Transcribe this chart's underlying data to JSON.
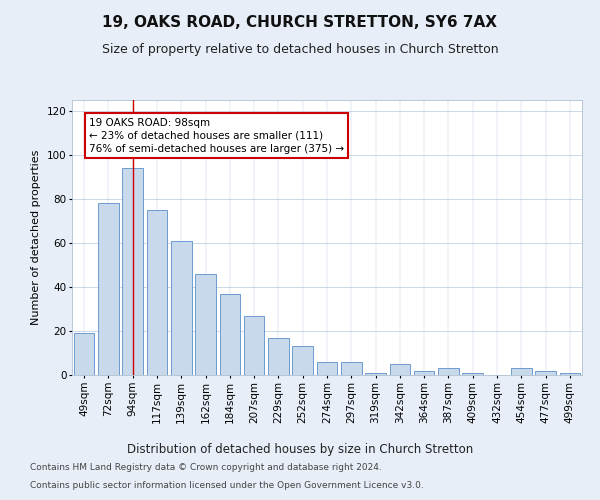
{
  "title": "19, OAKS ROAD, CHURCH STRETTON, SY6 7AX",
  "subtitle": "Size of property relative to detached houses in Church Stretton",
  "xlabel": "Distribution of detached houses by size in Church Stretton",
  "ylabel": "Number of detached properties",
  "categories": [
    "49sqm",
    "72sqm",
    "94sqm",
    "117sqm",
    "139sqm",
    "162sqm",
    "184sqm",
    "207sqm",
    "229sqm",
    "252sqm",
    "274sqm",
    "297sqm",
    "319sqm",
    "342sqm",
    "364sqm",
    "387sqm",
    "409sqm",
    "432sqm",
    "454sqm",
    "477sqm",
    "499sqm"
  ],
  "values": [
    19,
    78,
    94,
    75,
    61,
    46,
    37,
    27,
    17,
    13,
    6,
    6,
    1,
    5,
    2,
    3,
    1,
    0,
    3,
    2,
    1
  ],
  "bar_color": "#c9d9ec",
  "bar_edgecolor": "#5b8fc9",
  "highlight_index": 2,
  "highlight_line_color": "#cc0000",
  "annotation_text": "19 OAKS ROAD: 98sqm\n← 23% of detached houses are smaller (111)\n76% of semi-detached houses are larger (375) →",
  "annotation_box_edgecolor": "#cc0000",
  "ylim": [
    0,
    125
  ],
  "yticks": [
    0,
    20,
    40,
    60,
    80,
    100,
    120
  ],
  "background_color": "#e8eef8",
  "axes_background_color": "#ffffff",
  "footer_line1": "Contains HM Land Registry data © Crown copyright and database right 2024.",
  "footer_line2": "Contains public sector information licensed under the Open Government Licence v3.0.",
  "title_fontsize": 11,
  "subtitle_fontsize": 9,
  "xlabel_fontsize": 8.5,
  "ylabel_fontsize": 8,
  "tick_fontsize": 7.5,
  "footer_fontsize": 6.5
}
